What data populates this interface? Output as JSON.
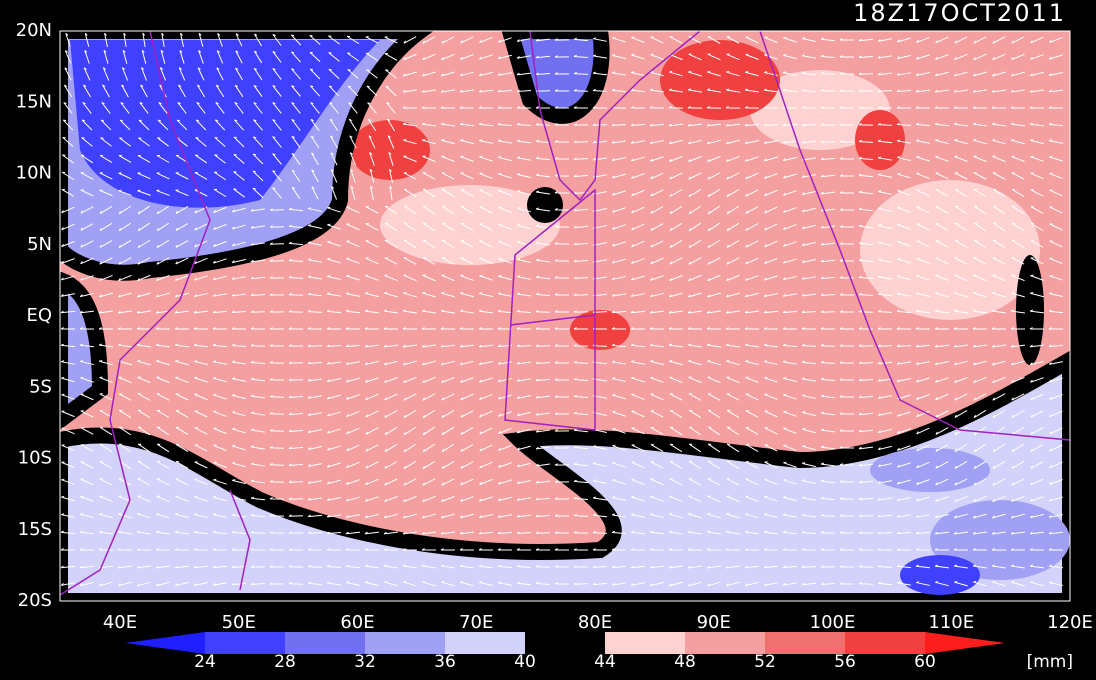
{
  "timestamp": "18Z17OCT2011",
  "map": {
    "lat_labels": [
      "20N",
      "15N",
      "10N",
      "5N",
      "EQ",
      "5S",
      "10S",
      "15S",
      "20S"
    ],
    "lon_labels": [
      "40E",
      "50E",
      "60E",
      "70E",
      "80E",
      "90E",
      "100E",
      "110E",
      "120E"
    ]
  },
  "colorbar": {
    "levels": [
      24,
      28,
      32,
      36,
      40,
      44,
      48,
      52,
      56,
      60
    ],
    "colors": [
      "#1e1eff",
      "#4040ff",
      "#7070f0",
      "#a0a0f5",
      "#d2d2fa",
      "#000000",
      "#ffd2d2",
      "#f5a0a0",
      "#f07070",
      "#f04040",
      "#ff1e1e"
    ],
    "unit": "[mm]"
  }
}
